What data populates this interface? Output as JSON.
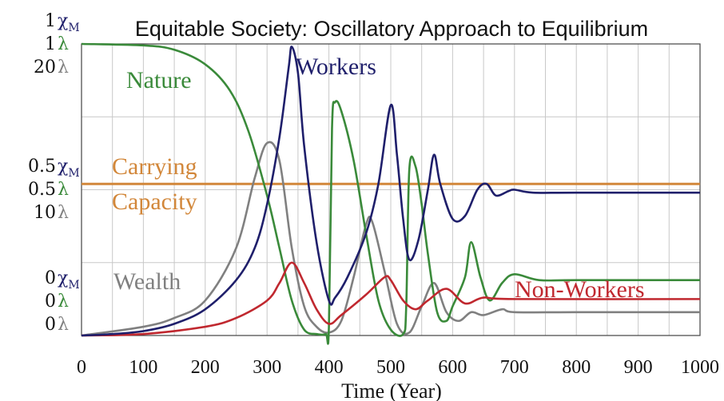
{
  "chart_data": {
    "type": "line",
    "title": "Equitable Society: Oscillatory Approach to Equilibrium",
    "xlabel": "Time (Year)",
    "xlim": [
      0,
      1000
    ],
    "ylim": [
      0,
      1
    ],
    "x_ticks": [
      "0",
      "100",
      "200",
      "300",
      "400",
      "500",
      "600",
      "700",
      "800",
      "900",
      "1000"
    ],
    "x_tick_values": [
      0,
      100,
      200,
      300,
      400,
      500,
      600,
      700,
      800,
      900,
      1000
    ],
    "y_axis_groups": [
      {
        "value": 1,
        "labels": [
          {
            "num": "1",
            "sym": "χ",
            "sub": "M",
            "color": "#1f1f6b"
          },
          {
            "num": "1",
            "sym": "λ",
            "sub": "",
            "color": "#3a8a3a"
          },
          {
            "num": "20",
            "sym": "λ",
            "sub": "",
            "color": "#808080"
          }
        ]
      },
      {
        "value": 0.5,
        "labels": [
          {
            "num": "0.5",
            "sym": "χ",
            "sub": "M",
            "color": "#1f1f6b"
          },
          {
            "num": "0.5",
            "sym": "λ",
            "sub": "",
            "color": "#3a8a3a"
          },
          {
            "num": "10",
            "sym": "λ",
            "sub": "",
            "color": "#808080"
          }
        ]
      },
      {
        "value": 0,
        "labels": [
          {
            "num": "0",
            "sym": "χ",
            "sub": "M",
            "color": "#1f1f6b"
          },
          {
            "num": "0",
            "sym": "λ",
            "sub": "",
            "color": "#3a8a3a"
          },
          {
            "num": "0",
            "sym": "λ",
            "sub": "",
            "color": "#808080"
          }
        ]
      }
    ],
    "grid": true,
    "series": [
      {
        "name": "Workers",
        "color": "#1f1f6b",
        "x": [
          0,
          50,
          100,
          150,
          200,
          250,
          280,
          300,
          320,
          335,
          340,
          350,
          360,
          380,
          400,
          410,
          430,
          460,
          480,
          500,
          510,
          520,
          530,
          545,
          560,
          570,
          580,
          600,
          620,
          640,
          655,
          670,
          690,
          700,
          730,
          800,
          1000
        ],
        "y": [
          0,
          0.005,
          0.015,
          0.04,
          0.09,
          0.19,
          0.3,
          0.45,
          0.68,
          0.92,
          0.99,
          0.9,
          0.65,
          0.32,
          0.12,
          0.13,
          0.2,
          0.35,
          0.52,
          0.79,
          0.62,
          0.4,
          0.26,
          0.33,
          0.5,
          0.62,
          0.52,
          0.4,
          0.41,
          0.5,
          0.52,
          0.48,
          0.495,
          0.5,
          0.49,
          0.49,
          0.49
        ]
      },
      {
        "name": "Nature",
        "color": "#3a8a3a",
        "x": [
          0,
          100,
          150,
          200,
          240,
          270,
          300,
          320,
          340,
          360,
          380,
          395,
          400,
          405,
          410,
          420,
          440,
          460,
          480,
          500,
          520,
          525,
          530,
          540,
          550,
          560,
          575,
          590,
          600,
          620,
          630,
          645,
          660,
          680,
          700,
          740,
          800,
          1000
        ],
        "y": [
          1.0,
          0.995,
          0.98,
          0.93,
          0.84,
          0.7,
          0.48,
          0.3,
          0.12,
          0.02,
          0.005,
          0.005,
          0.03,
          0.71,
          0.8,
          0.77,
          0.6,
          0.35,
          0.12,
          0.02,
          0.005,
          0.1,
          0.57,
          0.58,
          0.45,
          0.28,
          0.08,
          0.05,
          0.1,
          0.2,
          0.32,
          0.2,
          0.12,
          0.18,
          0.21,
          0.19,
          0.19,
          0.19
        ]
      },
      {
        "name": "Wealth",
        "color": "#808080",
        "x": [
          0,
          100,
          150,
          200,
          250,
          280,
          300,
          320,
          340,
          360,
          380,
          400,
          420,
          440,
          460,
          470,
          490,
          510,
          530,
          550,
          570,
          590,
          610,
          630,
          650,
          680,
          700,
          800,
          1000
        ],
        "y": [
          0,
          0.03,
          0.06,
          0.12,
          0.3,
          0.54,
          0.66,
          0.6,
          0.3,
          0.1,
          0.03,
          0.01,
          0.05,
          0.2,
          0.38,
          0.39,
          0.22,
          0.04,
          0.01,
          0.1,
          0.18,
          0.08,
          0.05,
          0.08,
          0.07,
          0.09,
          0.08,
          0.08,
          0.08
        ]
      },
      {
        "name": "Non-Workers",
        "color": "#c0282f",
        "x": [
          0,
          100,
          200,
          250,
          300,
          320,
          340,
          360,
          380,
          400,
          420,
          460,
          490,
          500,
          520,
          540,
          560,
          590,
          620,
          650,
          700,
          1000
        ],
        "y": [
          0,
          0.005,
          0.03,
          0.06,
          0.12,
          0.18,
          0.25,
          0.18,
          0.09,
          0.04,
          0.07,
          0.14,
          0.2,
          0.19,
          0.12,
          0.09,
          0.12,
          0.16,
          0.11,
          0.13,
          0.125,
          0.125
        ]
      }
    ],
    "reference_lines": [
      {
        "label_line1": "Carrying",
        "label_line2": "Capacity",
        "y": 0.52,
        "color": "#d2873a"
      }
    ]
  }
}
